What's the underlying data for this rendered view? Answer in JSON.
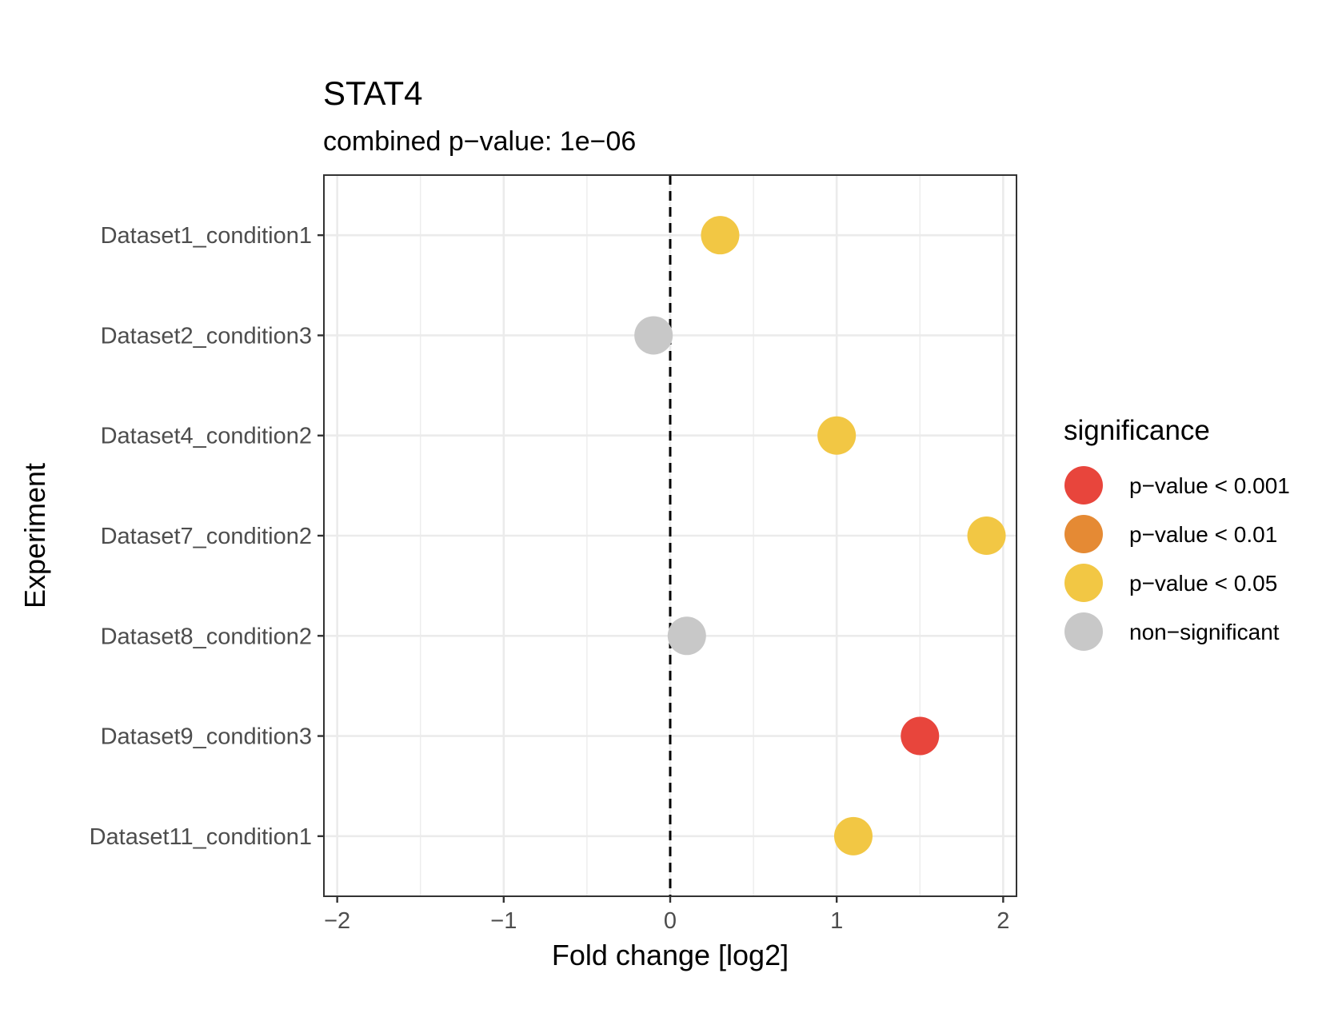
{
  "chart_data": {
    "type": "scatter",
    "title": "STAT4",
    "subtitle": "combined p−value: 1e−06",
    "xlabel": "Fold change [log2]",
    "ylabel": "Experiment",
    "xlim": [
      -2.08,
      2.08
    ],
    "xticks": [
      -2,
      -1,
      0,
      1,
      2
    ],
    "xtick_labels": [
      "−2",
      "−1",
      "0",
      "1",
      "2"
    ],
    "reference_line_x": 0,
    "categories": [
      "Dataset1_condition1",
      "Dataset2_condition3",
      "Dataset4_condition2",
      "Dataset7_condition2",
      "Dataset8_condition2",
      "Dataset9_condition3",
      "Dataset11_condition1"
    ],
    "points": [
      {
        "experiment": "Dataset1_condition1",
        "fold_change": 0.3,
        "significance": "p−value < 0.05"
      },
      {
        "experiment": "Dataset2_condition3",
        "fold_change": -0.1,
        "significance": "non−significant"
      },
      {
        "experiment": "Dataset4_condition2",
        "fold_change": 1.0,
        "significance": "p−value < 0.05"
      },
      {
        "experiment": "Dataset7_condition2",
        "fold_change": 1.9,
        "significance": "p−value < 0.05"
      },
      {
        "experiment": "Dataset8_condition2",
        "fold_change": 0.1,
        "significance": "non−significant"
      },
      {
        "experiment": "Dataset9_condition3",
        "fold_change": 1.5,
        "significance": "p−value < 0.001"
      },
      {
        "experiment": "Dataset11_condition1",
        "fold_change": 1.1,
        "significance": "p−value < 0.05"
      }
    ],
    "legend": {
      "title": "significance",
      "position": "right",
      "entries": [
        {
          "label": "p−value < 0.001",
          "color": "#e8453c"
        },
        {
          "label": "p−value < 0.01",
          "color": "#e58a34"
        },
        {
          "label": "p−value < 0.05",
          "color": "#f2c744"
        },
        {
          "label": "non−significant",
          "color": "#c8c8c8"
        }
      ]
    }
  }
}
